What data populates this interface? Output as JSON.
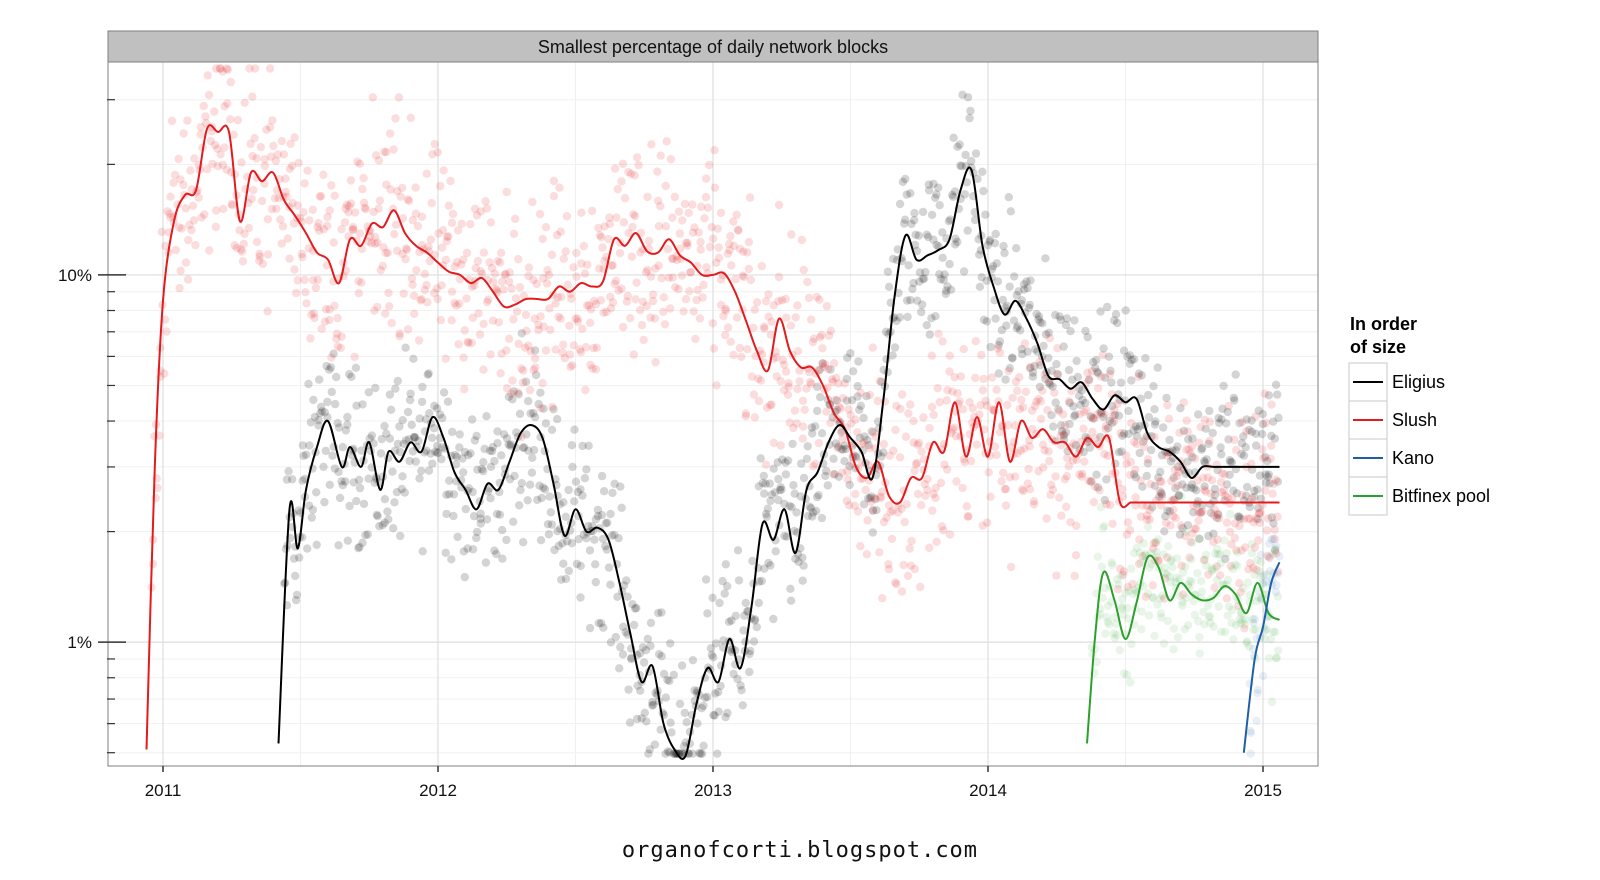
{
  "chart_data": {
    "type": "scatter",
    "title": "Smallest percentage of daily network blocks",
    "xlabel": "",
    "ylabel": "",
    "y_scale": "log10",
    "xlim": [
      2010.8,
      2015.2
    ],
    "ylim": [
      0.46,
      38
    ],
    "x_ticks": [
      2011,
      2012,
      2013,
      2014,
      2015
    ],
    "x_tick_labels": [
      "2011",
      "2012",
      "2013",
      "2014",
      "2015"
    ],
    "y_ticks": [
      1,
      10
    ],
    "y_tick_labels": [
      "1%",
      "10%"
    ],
    "y_minor_ticks": [
      0.5,
      0.6,
      0.7,
      0.8,
      0.9,
      2,
      3,
      4,
      5,
      6,
      7,
      8,
      9,
      20,
      30
    ],
    "legend": {
      "title_lines": [
        "In order",
        "of size"
      ],
      "position": "right"
    },
    "series": [
      {
        "name": "Eligius",
        "color": "#000000",
        "x": [
          2011.42,
          2011.46,
          2011.49,
          2011.52,
          2011.56,
          2011.6,
          2011.65,
          2011.68,
          2011.72,
          2011.75,
          2011.79,
          2011.82,
          2011.86,
          2011.9,
          2011.94,
          2011.98,
          2012.02,
          2012.06,
          2012.1,
          2012.14,
          2012.18,
          2012.22,
          2012.26,
          2012.3,
          2012.34,
          2012.38,
          2012.42,
          2012.46,
          2012.5,
          2012.54,
          2012.58,
          2012.62,
          2012.66,
          2012.7,
          2012.74,
          2012.78,
          2012.82,
          2012.86,
          2012.9,
          2012.94,
          2012.98,
          2013.02,
          2013.06,
          2013.1,
          2013.14,
          2013.18,
          2013.22,
          2013.26,
          2013.3,
          2013.34,
          2013.38,
          2013.42,
          2013.46,
          2013.5,
          2013.54,
          2013.58,
          2013.62,
          2013.66,
          2013.7,
          2013.74,
          2013.78,
          2013.82,
          2013.86,
          2013.9,
          2013.94,
          2013.98,
          2014.02,
          2014.06,
          2014.1,
          2014.14,
          2014.18,
          2014.22,
          2014.26,
          2014.3,
          2014.34,
          2014.38,
          2014.42,
          2014.46,
          2014.5,
          2014.54,
          2014.58,
          2014.62,
          2014.66,
          2014.7,
          2014.74,
          2014.78,
          2014.82,
          2014.86,
          2014.9,
          2014.94,
          2014.98,
          2015.02,
          2015.06
        ],
        "y": [
          0.53,
          2.3,
          1.8,
          2.6,
          3.4,
          4.0,
          3.0,
          3.4,
          3.0,
          3.5,
          2.6,
          3.3,
          3.1,
          3.5,
          3.3,
          4.1,
          3.6,
          2.9,
          2.6,
          2.3,
          2.7,
          2.6,
          3.1,
          3.7,
          3.9,
          3.6,
          2.7,
          1.95,
          2.3,
          2.0,
          2.05,
          1.9,
          1.45,
          1.05,
          0.78,
          0.86,
          0.6,
          0.51,
          0.49,
          0.68,
          0.85,
          0.78,
          1.02,
          0.85,
          1.25,
          2.1,
          1.9,
          2.3,
          1.75,
          2.6,
          2.9,
          3.5,
          3.9,
          3.6,
          3.3,
          2.8,
          4.6,
          8.7,
          12.8,
          11.0,
          11.3,
          11.7,
          12.5,
          17.0,
          19.3,
          12.0,
          9.3,
          7.8,
          8.5,
          7.6,
          6.5,
          5.3,
          5.2,
          4.9,
          5.1,
          4.6,
          4.3,
          4.7,
          4.5,
          4.6,
          3.7,
          3.4,
          3.3,
          3.1,
          2.8,
          3.0,
          3.0,
          3.0,
          3.0,
          3.0,
          3.0,
          3.0,
          3.0
        ]
      },
      {
        "name": "Slush",
        "color": "#e41a1c",
        "x": [
          2010.94,
          2010.97,
          2011.0,
          2011.04,
          2011.08,
          2011.12,
          2011.16,
          2011.2,
          2011.24,
          2011.28,
          2011.32,
          2011.36,
          2011.4,
          2011.44,
          2011.48,
          2011.52,
          2011.56,
          2011.6,
          2011.64,
          2011.68,
          2011.72,
          2011.76,
          2011.8,
          2011.84,
          2011.88,
          2011.92,
          2011.96,
          2012.0,
          2012.04,
          2012.08,
          2012.12,
          2012.16,
          2012.2,
          2012.24,
          2012.28,
          2012.32,
          2012.36,
          2012.4,
          2012.44,
          2012.48,
          2012.52,
          2012.56,
          2012.6,
          2012.64,
          2012.68,
          2012.72,
          2012.76,
          2012.8,
          2012.84,
          2012.88,
          2012.92,
          2012.96,
          2013.0,
          2013.04,
          2013.08,
          2013.12,
          2013.16,
          2013.2,
          2013.24,
          2013.28,
          2013.32,
          2013.36,
          2013.4,
          2013.44,
          2013.48,
          2013.52,
          2013.56,
          2013.6,
          2013.64,
          2013.68,
          2013.72,
          2013.76,
          2013.8,
          2013.84,
          2013.88,
          2013.92,
          2013.96,
          2014.0,
          2014.04,
          2014.08,
          2014.12,
          2014.16,
          2014.2,
          2014.24,
          2014.28,
          2014.32,
          2014.36,
          2014.4,
          2014.44,
          2014.48,
          2014.52,
          2014.56,
          2014.6,
          2014.64,
          2014.68,
          2014.72,
          2014.76,
          2014.8,
          2014.84,
          2014.88,
          2014.92,
          2014.96,
          2015.0,
          2015.04,
          2015.06
        ],
        "y": [
          0.51,
          3.0,
          8.5,
          14.0,
          16.5,
          17.0,
          25.0,
          24.5,
          24.5,
          14.0,
          19.0,
          18.0,
          19.0,
          16.0,
          14.5,
          13.0,
          11.5,
          11.0,
          9.5,
          12.5,
          12.0,
          13.8,
          13.5,
          15.0,
          13.0,
          12.0,
          11.5,
          10.8,
          10.2,
          10.0,
          9.5,
          9.8,
          9.0,
          8.2,
          8.3,
          8.6,
          8.6,
          8.6,
          9.3,
          9.0,
          9.5,
          9.3,
          9.6,
          12.5,
          12.0,
          13.0,
          11.6,
          11.5,
          12.5,
          11.3,
          10.8,
          10.0,
          10.0,
          10.1,
          9.0,
          7.5,
          6.2,
          5.5,
          7.6,
          6.2,
          5.6,
          5.6,
          5.0,
          4.2,
          3.8,
          3.0,
          2.8,
          3.1,
          2.5,
          2.4,
          2.8,
          2.8,
          3.5,
          3.3,
          4.5,
          3.2,
          4.1,
          3.2,
          4.5,
          3.1,
          4.0,
          3.6,
          3.8,
          3.5,
          3.5,
          3.2,
          3.6,
          3.4,
          3.6,
          2.4,
          2.4,
          2.4,
          2.4,
          2.4,
          2.4,
          2.4,
          2.4,
          2.4,
          2.4,
          2.4,
          2.4,
          2.4,
          2.4,
          2.4,
          2.4
        ]
      },
      {
        "name": "Kano",
        "color": "#1f5fa8",
        "x": [
          2014.93,
          2014.97,
          2015.0,
          2015.03,
          2015.06
        ],
        "y": [
          0.5,
          0.9,
          1.1,
          1.45,
          1.65
        ]
      },
      {
        "name": "Bitfinex pool",
        "color": "#2ca02c",
        "x": [
          2014.36,
          2014.39,
          2014.42,
          2014.46,
          2014.5,
          2014.54,
          2014.58,
          2014.62,
          2014.66,
          2014.7,
          2014.74,
          2014.78,
          2014.82,
          2014.86,
          2014.9,
          2014.94,
          2014.98,
          2015.02,
          2015.06
        ],
        "y": [
          0.53,
          1.05,
          1.55,
          1.3,
          1.02,
          1.28,
          1.7,
          1.6,
          1.3,
          1.45,
          1.35,
          1.3,
          1.32,
          1.42,
          1.35,
          1.2,
          1.45,
          1.2,
          1.15
        ]
      }
    ]
  },
  "caption": "organofcorti.blogspot.com"
}
